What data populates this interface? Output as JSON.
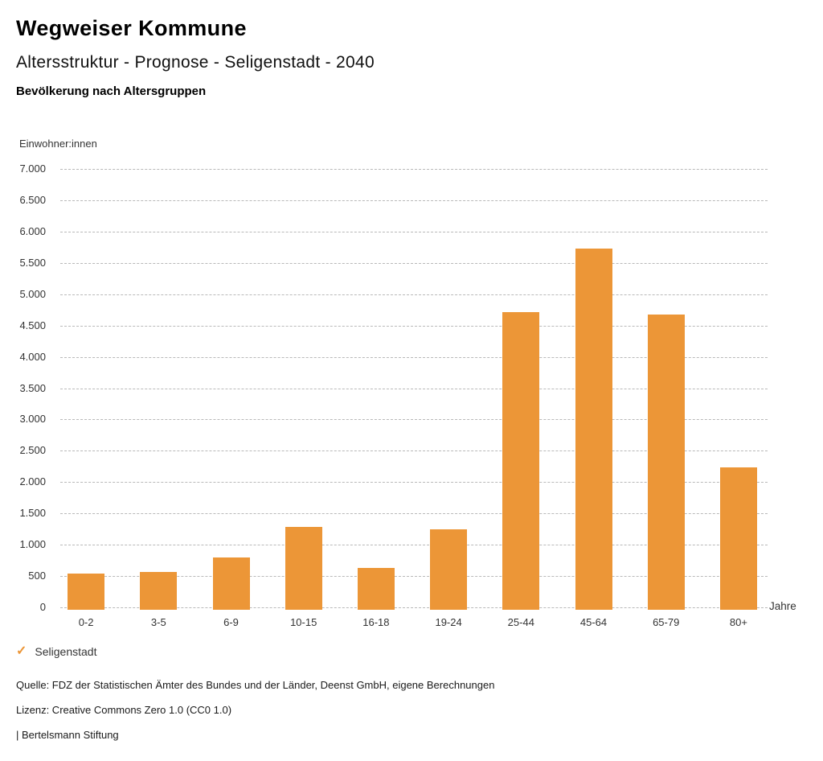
{
  "header": {
    "brand": "Wegweiser Kommune",
    "title": "Altersstruktur - Prognose - Seligenstadt - 2040",
    "subtitle": "Bevölkerung nach Altersgruppen"
  },
  "chart_data": {
    "type": "bar",
    "title": "Altersstruktur - Prognose - Seligenstadt - 2040",
    "subtitle": "Bevölkerung nach Altersgruppen",
    "ylabel": "Einwohner:innen",
    "xlabel": "Jahre",
    "categories": [
      "0-2",
      "3-5",
      "6-9",
      "10-15",
      "16-18",
      "19-24",
      "25-44",
      "45-64",
      "65-79",
      "80+"
    ],
    "values": [
      535,
      565,
      800,
      1280,
      630,
      1250,
      4710,
      5730,
      4670,
      2240
    ],
    "series_name": "Seligenstadt",
    "ylim": [
      0,
      7000
    ],
    "ytick_step": 500,
    "ytick_labels": [
      "0",
      "500",
      "1.000",
      "1.500",
      "2.000",
      "2.500",
      "3.000",
      "3.500",
      "4.000",
      "4.500",
      "5.000",
      "5.500",
      "6.000",
      "6.500",
      "7.000"
    ],
    "grid": "horizontal-dotted",
    "legend_position": "bottom-left",
    "bar_color": "#EC9637",
    "gridline_color": "#B9B9B9"
  },
  "legend": {
    "check_glyph": "✓",
    "label": "Seligenstadt"
  },
  "footer": {
    "source": "Quelle: FDZ der Statistischen Ämter des Bundes und der Länder, Deenst GmbH, eigene Berechnungen",
    "license": "Lizenz: Creative Commons Zero 1.0 (CC0 1.0)",
    "attribution": "| Bertelsmann Stiftung"
  }
}
